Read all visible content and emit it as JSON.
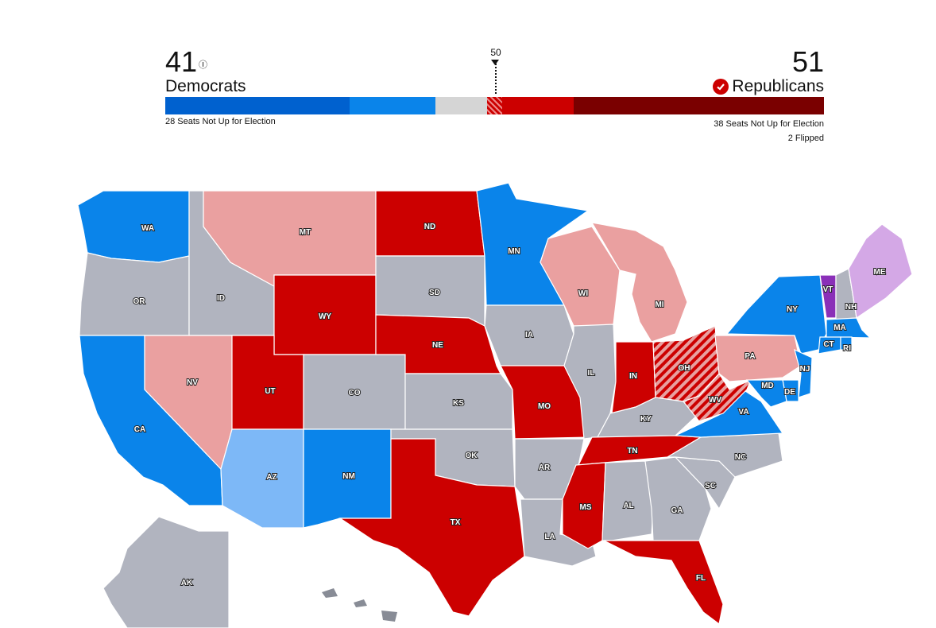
{
  "header": {
    "dem_count": "41",
    "dem_note": "Ⓘ",
    "dem_label": "Democrats",
    "rep_count": "51",
    "rep_label": "Republicans",
    "majority_marker": "50",
    "dem_not_up": "28 Seats Not Up for Election",
    "rep_not_up": "38 Seats Not Up for Election",
    "rep_flipped": "2 Flipped"
  },
  "bar_segments": [
    {
      "party": "dem-not-up",
      "seats": 28,
      "color": "#0061cf"
    },
    {
      "party": "dem",
      "seats": 13,
      "color": "#0a84ea"
    },
    {
      "party": "undecided",
      "seats": 8,
      "color": "#d5d5d5"
    },
    {
      "party": "rep-flipped",
      "seats": 2,
      "color": "#c41e2b"
    },
    {
      "party": "rep",
      "seats": 11,
      "color": "#cc0000"
    },
    {
      "party": "rep-not-up",
      "seats": 38,
      "color": "#7a0000"
    }
  ],
  "colors": {
    "dem_solid": "#0a84ea",
    "dem_light": "#7db8f7",
    "rep_solid": "#cc0000",
    "rep_light": "#eaa0a0",
    "no_race": "#b1b4bf",
    "independent": "#8a2fb8",
    "independent_light": "#d4a8e6",
    "flipped_stripe": "#cc0000"
  },
  "states": {
    "WA": "WA",
    "OR": "OR",
    "CA": "CA",
    "ID": "ID",
    "NV": "NV",
    "MT": "MT",
    "WY": "WY",
    "UT": "UT",
    "AZ": "AZ",
    "CO": "CO",
    "NM": "NM",
    "ND": "ND",
    "SD": "SD",
    "NE": "NE",
    "KS": "KS",
    "OK": "OK",
    "TX": "TX",
    "MN": "MN",
    "IA": "IA",
    "MO": "MO",
    "AR": "AR",
    "LA": "LA",
    "WI": "WI",
    "IL": "IL",
    "MS": "MS",
    "MI": "MI",
    "IN": "IN",
    "KY": "KY",
    "TN": "TN",
    "AL": "AL",
    "OH": "OH",
    "WV": "WV",
    "GA": "GA",
    "FL": "FL",
    "SC": "SC",
    "NC": "NC",
    "VA": "VA",
    "PA": "PA",
    "NY": "NY",
    "VT": "VT",
    "NH": "NH",
    "ME": "ME",
    "MA": "MA",
    "CT": "CT",
    "RI": "RI",
    "NJ": "NJ",
    "DE": "DE",
    "MD": "MD",
    "AK": "AK"
  }
}
